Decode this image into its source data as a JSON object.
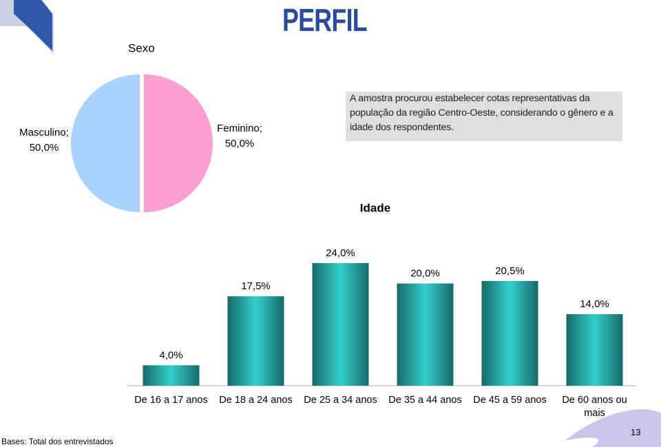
{
  "header": {
    "title": "PERFIL"
  },
  "note": "A amostra procurou estabelecer cotas representativas da população da região Centro-Oeste, considerando o gênero e a idade dos respondentes.",
  "footer": {
    "base": "Bases: Total dos entrevistados",
    "page": "13"
  },
  "chart_data": [
    {
      "type": "pie",
      "title": "Sexo",
      "categories": [
        "Masculino;",
        "Feminino;"
      ],
      "values": [
        50,
        50
      ],
      "value_labels": [
        "50,0%",
        "50,0%"
      ],
      "colors": [
        "#a9d2fa",
        "#fb9fd2"
      ]
    },
    {
      "type": "bar",
      "title": "Idade",
      "categories": [
        "De 16 a 17 anos",
        "De 18 a 24 anos",
        "De 25 a 34 anos",
        "De 35 a 44 anos",
        "De 45 a 59 anos",
        "De 60 anos ou mais"
      ],
      "values": [
        4,
        17.5,
        24,
        20,
        20.5,
        14
      ],
      "value_labels": [
        "4,0%",
        "17,5%",
        "24,0%",
        "20,0%",
        "20,5%",
        "14,0%"
      ],
      "color": "#33cfcc"
    }
  ]
}
